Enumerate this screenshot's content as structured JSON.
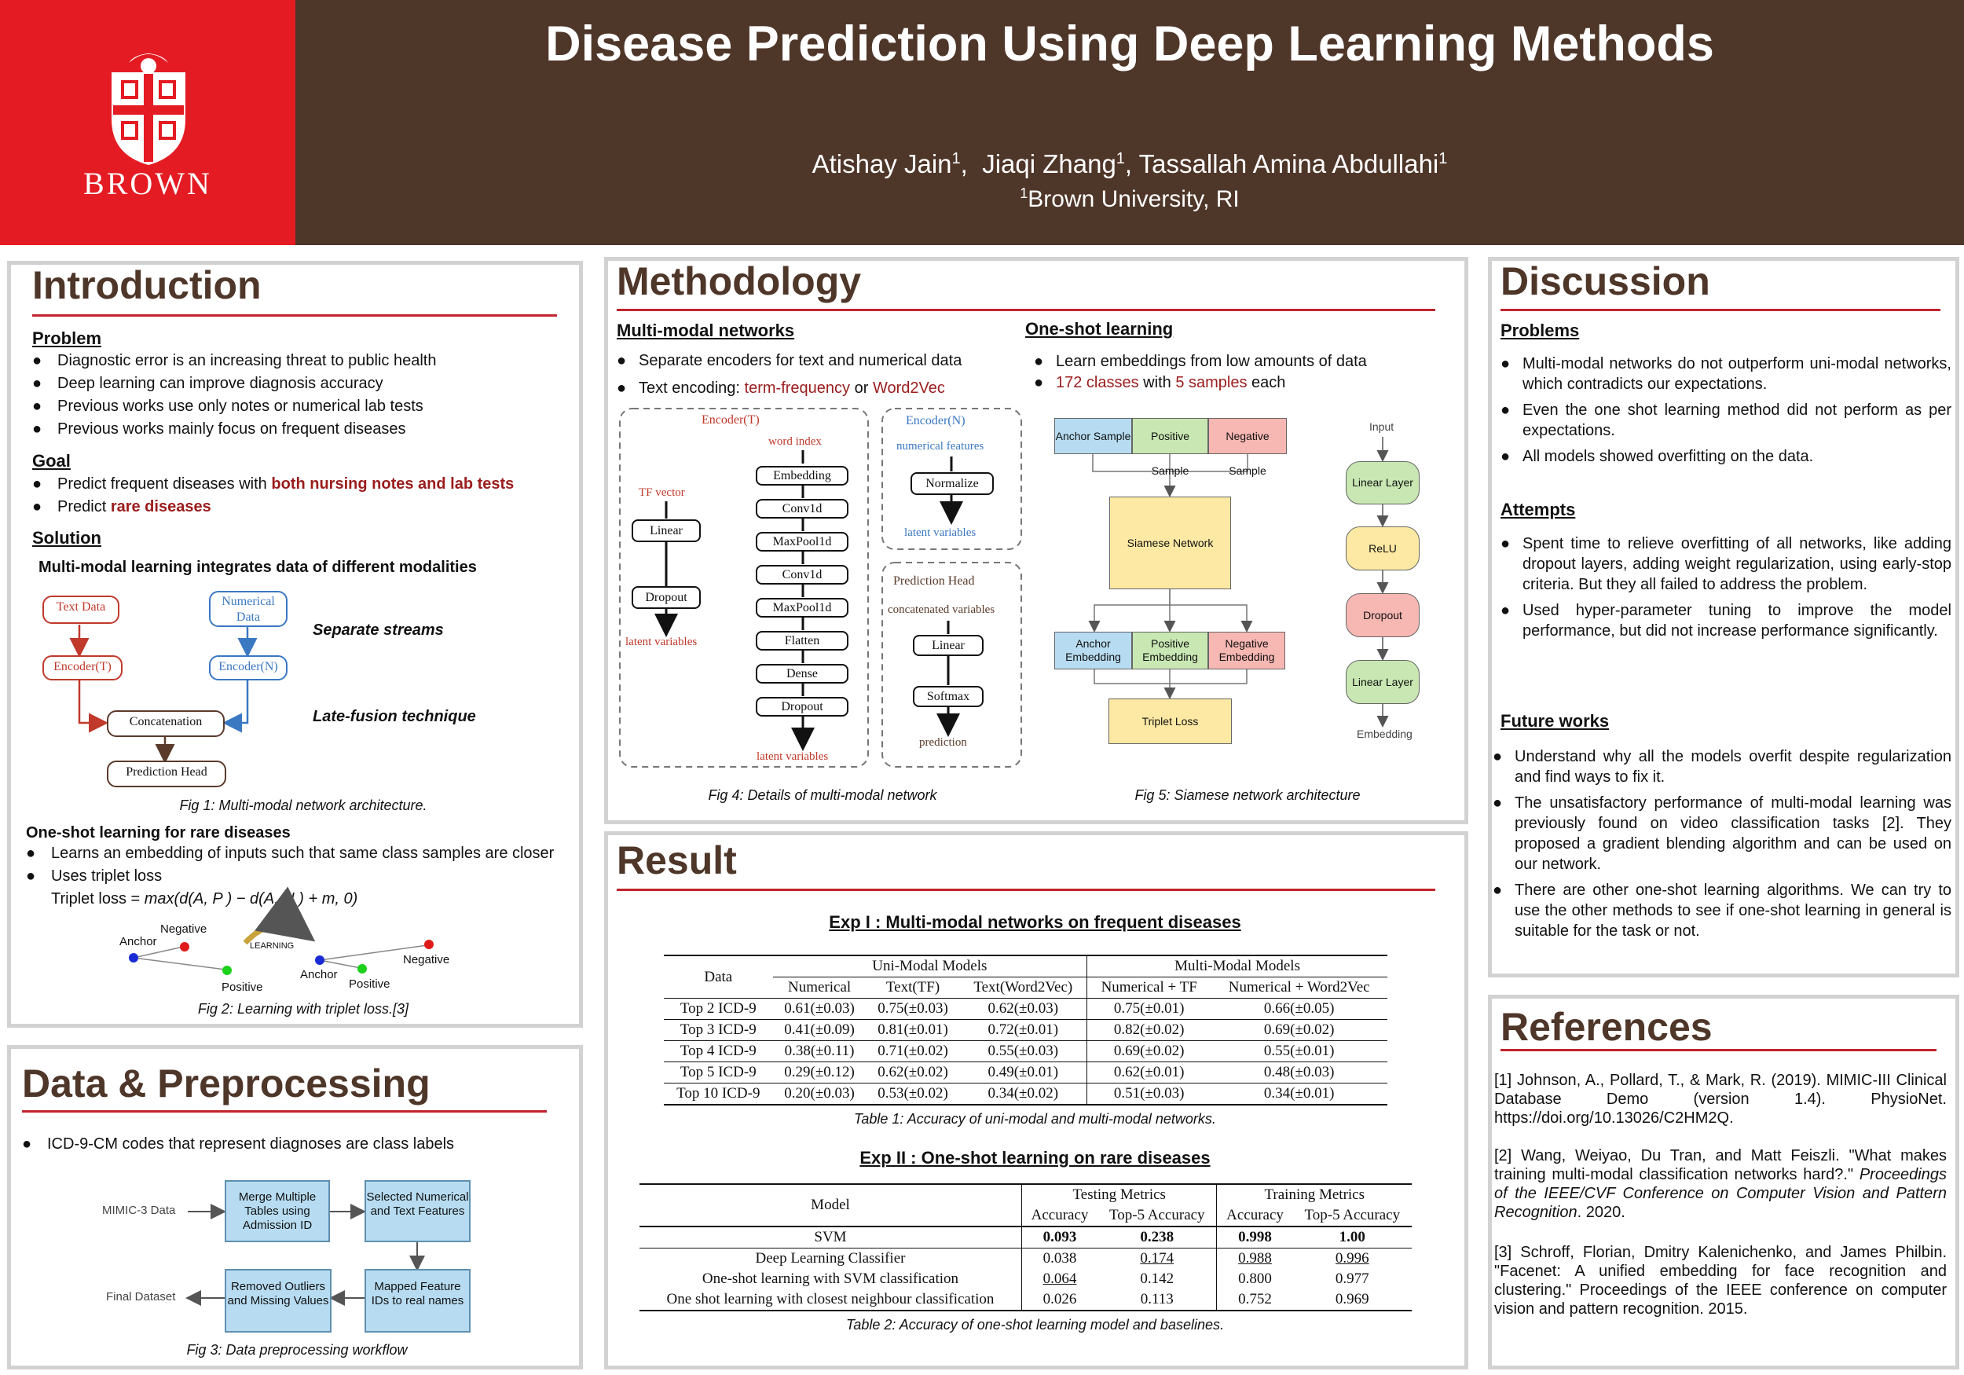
{
  "header": {
    "title": "Disease Prediction Using Deep Learning Methods",
    "authors": [
      {
        "name": "Atishay Jain",
        "sup": "1",
        "sep": ",  "
      },
      {
        "name": "Jiaqi Zhang",
        "sup": "1",
        "sep": ", "
      },
      {
        "name": "Tassallah Amina Abdullahi",
        "sup": "1",
        "sep": ""
      }
    ],
    "affiliation_sup": "1",
    "affiliation": "Brown University, RI",
    "logo_text": "BROWN"
  },
  "intro": {
    "title": "Introduction",
    "problem_heading": "Problem",
    "problem": [
      "Diagnostic error is an increasing threat to public health",
      "Deep learning can improve diagnosis accuracy",
      "Previous works use only notes or numerical lab tests",
      "Previous works mainly focus on frequent diseases"
    ],
    "goal_heading": "Goal",
    "goal1_prefix": "Predict frequent diseases with ",
    "goal1_highlight": "both nursing notes and lab tests",
    "goal2_prefix": "Predict ",
    "goal2_highlight": "rare diseases",
    "solution_heading": "Solution",
    "solution_text": "Multi-modal learning integrates data of different modalities",
    "fig1": {
      "text_data": "Text Data",
      "numerical_data": "Numerical Data",
      "encoder_t": "Encoder(T)",
      "encoder_n": "Encoder(N)",
      "concatenation": "Concatenation",
      "prediction_head": "Prediction Head",
      "note_streams": "Separate streams",
      "note_fusion": "Late-fusion technique",
      "caption": "Fig 1: Multi-modal network architecture."
    },
    "oneshot_heading": "One-shot learning for rare diseases",
    "oneshot": [
      "Learns an embedding of inputs such that same class samples are closer",
      "Uses triplet loss"
    ],
    "triplet_prefix": "Triplet loss = ",
    "triplet_formula": "max(d(A, P ) − d(A, N ) + m, 0)",
    "fig2": {
      "anchor": "Anchor",
      "negative": "Negative",
      "positive": "Positive",
      "learning": "LEARNING",
      "caption": "Fig 2: Learning with triplet loss.[3]"
    }
  },
  "data": {
    "title": "Data & Preprocessing",
    "bullet": "ICD-9-CM codes that represent diagnoses are class labels",
    "fig3": {
      "mimic": "MIMIC-3 Data",
      "merge": "Merge Multiple Tables using Admission ID",
      "selected": "Selected Numerical and Text Features",
      "mapped": "Mapped Feature IDs to real names",
      "removed": "Removed Outliers and Missing Values",
      "final": "Final Dataset",
      "caption": "Fig 3: Data preprocessing workflow"
    }
  },
  "method": {
    "title": "Methodology",
    "mm_heading": "Multi-modal networks",
    "mm1": "Separate encoders for text and numerical data",
    "mm2_prefix": "Text encoding: ",
    "mm2_a": "term-frequency",
    "mm2_or": " or ",
    "mm2_b": "Word2Vec",
    "os_heading": "One-shot learning",
    "os1": "Learn embeddings from low amounts of data",
    "os2_a": "172 classes",
    "os2_with": " with ",
    "os2_b": "5 samples",
    "os2_end": " each",
    "fig4": {
      "encoder_t": "Encoder(T)",
      "word_index": "word index",
      "tf_vector": "TF vector",
      "layers_cnn": [
        "Embedding",
        "Conv1d",
        "MaxPool1d",
        "Conv1d",
        "MaxPool1d",
        "Flatten",
        "Dense",
        "Dropout"
      ],
      "linear": "Linear",
      "dropout": "Dropout",
      "latent_left": "latent variables",
      "latent_bottom": "latent variables",
      "encoder_n": "Encoder(N)",
      "numerical_features": "numerical features",
      "normalize": "Normalize",
      "latent_n": "latent variables",
      "pred_head": "Prediction Head",
      "concat_vars": "concatenated variables",
      "ph_linear": "Linear",
      "softmax": "Softmax",
      "prediction": "prediction",
      "caption": "Fig 4: Details of multi-modal network"
    },
    "fig5": {
      "anchor_sample": "Anchor Sample",
      "positive_sample": "Positive Sample",
      "negative_sample": "Negative Sample",
      "siamese": "Siamese Network",
      "anchor_emb": "Anchor Embedding",
      "positive_emb": "Positive Embedding",
      "negative_emb": "Negative Embedding",
      "triplet_loss": "Triplet Loss",
      "input": "Input",
      "linear1": "Linear Layer",
      "relu": "ReLU",
      "dropout": "Dropout",
      "linear2": "Linear Layer",
      "embedding": "Embedding",
      "caption": "Fig 5: Siamese network architecture"
    }
  },
  "result": {
    "title": "Result",
    "exp1_heading": "Exp I : Multi-modal networks on frequent diseases",
    "table1": {
      "data_col": "Data",
      "uni_group": "Uni-Modal Models",
      "multi_group": "Multi-Modal Models",
      "cols": [
        "Numerical",
        "Text(TF)",
        "Text(Word2Vec)",
        "Numerical + TF",
        "Numerical + Word2Vec"
      ],
      "rows": [
        [
          "Top 2 ICD-9",
          "0.61(±0.03)",
          "0.75(±0.03)",
          "0.62(±0.03)",
          "0.75(±0.01)",
          "0.66(±0.05)"
        ],
        [
          "Top 3 ICD-9",
          "0.41(±0.09)",
          "0.81(±0.01)",
          "0.72(±0.01)",
          "0.82(±0.02)",
          "0.69(±0.02)"
        ],
        [
          "Top 4 ICD-9",
          "0.38(±0.11)",
          "0.71(±0.02)",
          "0.55(±0.03)",
          "0.69(±0.02)",
          "0.55(±0.01)"
        ],
        [
          "Top 5 ICD-9",
          "0.29(±0.12)",
          "0.62(±0.02)",
          "0.49(±0.01)",
          "0.62(±0.01)",
          "0.48(±0.03)"
        ],
        [
          "Top 10 ICD-9",
          "0.20(±0.03)",
          "0.53(±0.02)",
          "0.34(±0.02)",
          "0.51(±0.03)",
          "0.34(±0.01)"
        ]
      ],
      "caption": "Table 1: Accuracy of uni-modal and multi-modal networks."
    },
    "exp2_heading": "Exp II : One-shot learning on rare diseases",
    "table2": {
      "model_col": "Model",
      "testing_group": "Testing Metrics",
      "training_group": "Training Metrics",
      "cols": [
        "Accuracy",
        "Top-5 Accuracy",
        "Accuracy",
        "Top-5 Accuracy"
      ],
      "rows": [
        [
          "SVM",
          "0.093",
          "0.238",
          "0.998",
          "1.00"
        ],
        [
          "Deep Learning Classifier",
          "0.038",
          "0.174",
          "0.988",
          "0.996"
        ],
        [
          "One-shot learning with SVM classification",
          "0.064",
          "0.142",
          "0.800",
          "0.977"
        ],
        [
          "One shot learning with closest neighbour classification",
          "0.026",
          "0.113",
          "0.752",
          "0.969"
        ]
      ],
      "caption": "Table 2: Accuracy of one-shot learning model and baselines."
    }
  },
  "discussion": {
    "title": "Discussion",
    "problems_heading": "Problems",
    "problems": [
      "Multi-modal networks do not outperform uni-modal networks, which contradicts our expectations.",
      "Even the one shot learning method did not perform as per expectations.",
      "All models showed overfitting on the data."
    ],
    "attempts_heading": "Attempts",
    "attempts": [
      "Spent time to relieve overfitting of all networks, like adding dropout layers, adding weight regularization, using early-stop criteria. But they all failed to address the problem.",
      "Used hyper-parameter tuning to improve the model performance, but did not increase performance significantly."
    ],
    "future_heading": "Future works",
    "future": [
      "Understand why all the models overfit despite regularization and find ways to fix it.",
      "The unsatisfactory performance of multi-modal learning was previously found on video classification tasks [2]. They proposed a gradient blending algorithm and can be used on our network.",
      "There are other one-shot learning algorithms. We can try to use the other methods to see if one-shot learning in general is suitable for the task or not."
    ]
  },
  "references": {
    "title": "References",
    "r1": "[1] Johnson, A., Pollard, T., & Mark, R. (2019). MIMIC-III Clinical Database Demo (version 1.4). PhysioNet. https://doi.org/10.13026/C2HM2Q.",
    "r2_main": "[2] Wang, Weiyao, Du Tran, and Matt Feiszli. \"What makes training multi-modal classification networks hard?.\" ",
    "r2_italic": "Proceedings of the IEEE/CVF Conference on Computer Vision and Pattern Recognition",
    "r2_end": ". 2020.",
    "r3": "[3] Schroff, Florian, Dmitry Kalenichenko, and James Philbin. \"Facenet: A unified embedding for face recognition and clustering.\" Proceedings of the IEEE conference on computer vision and pattern recognition. 2015."
  },
  "colors": {
    "brown": "#4e3629",
    "red": "#e41b23",
    "accent_red": "#9b1c1c",
    "panel_border": "#d2d2d2",
    "fig1_red": "#c0392b",
    "fig1_blue": "#3a78c2"
  }
}
